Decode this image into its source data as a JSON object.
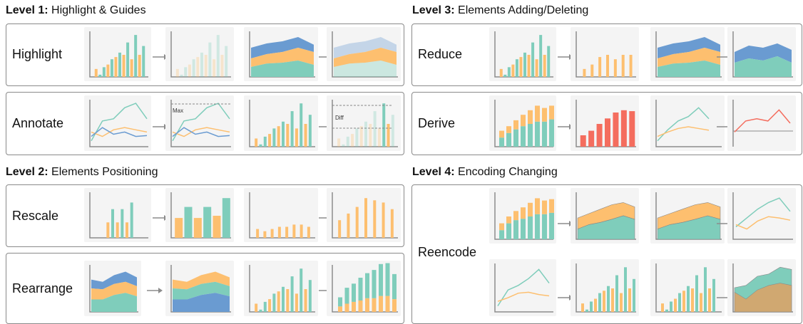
{
  "colors": {
    "teal": "#7fcdbb",
    "orange": "#fdbf6f",
    "blue": "#6a9bd1",
    "red": "#f46d5e",
    "axis": "#8c8c8c",
    "arrow": "#8c8c8c",
    "dashed": "#888888",
    "thumb_bg": "#f4f4f4",
    "box_border": "#8a8a8a"
  },
  "levels": [
    {
      "key": "level1",
      "prefix": "Level 1:",
      "title": "Highlight & Guides"
    },
    {
      "key": "level2",
      "prefix": "Level 2:",
      "title": "Elements Positioning"
    },
    {
      "key": "level3",
      "prefix": "Level 3:",
      "title": "Elements Adding/Deleting"
    },
    {
      "key": "level4",
      "prefix": "Level 4:",
      "title": "Encoding Changing"
    }
  ],
  "operations": [
    {
      "key": "highlight",
      "label": "Highlight"
    },
    {
      "key": "annotate",
      "label": "Annotate"
    },
    {
      "key": "rescale",
      "label": "Rescale"
    },
    {
      "key": "rearrange",
      "label": "Rearrange"
    },
    {
      "key": "reduce",
      "label": "Reduce"
    },
    {
      "key": "derive",
      "label": "Derive"
    },
    {
      "key": "reencode",
      "label": "Reencode"
    }
  ],
  "annotations": {
    "max_label": "Max",
    "diff_label": "Diff"
  },
  "icons": {
    "arrow": "arrow-right-icon"
  }
}
